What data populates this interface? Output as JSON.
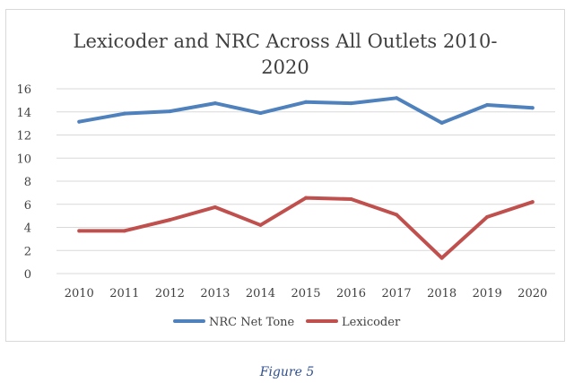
{
  "chart_data": {
    "type": "line",
    "title": "Lexicoder and NRC Across All Outlets 2010-2020",
    "title_lines": [
      "Lexicoder and NRC Across All Outlets 2010-",
      "2020"
    ],
    "x": [
      "2010",
      "2011",
      "2012",
      "2013",
      "2014",
      "2015",
      "2016",
      "2017",
      "2018",
      "2019",
      "2020"
    ],
    "series": [
      {
        "name": "NRC Net Tone",
        "color": "#4f81bd",
        "values": [
          13.15,
          13.85,
          14.05,
          14.75,
          13.9,
          14.85,
          14.75,
          15.2,
          13.05,
          14.6,
          14.35
        ]
      },
      {
        "name": "Lexicoder",
        "color": "#c0504d",
        "values": [
          3.7,
          3.7,
          4.65,
          5.75,
          4.2,
          6.55,
          6.45,
          5.1,
          1.35,
          4.9,
          6.2
        ]
      }
    ],
    "ylim": [
      0,
      16
    ],
    "yticks": [
      "0",
      "2",
      "4",
      "6",
      "8",
      "10",
      "12",
      "14",
      "16"
    ],
    "grid": true,
    "legend_position": "bottom"
  },
  "caption": "Figure 5"
}
